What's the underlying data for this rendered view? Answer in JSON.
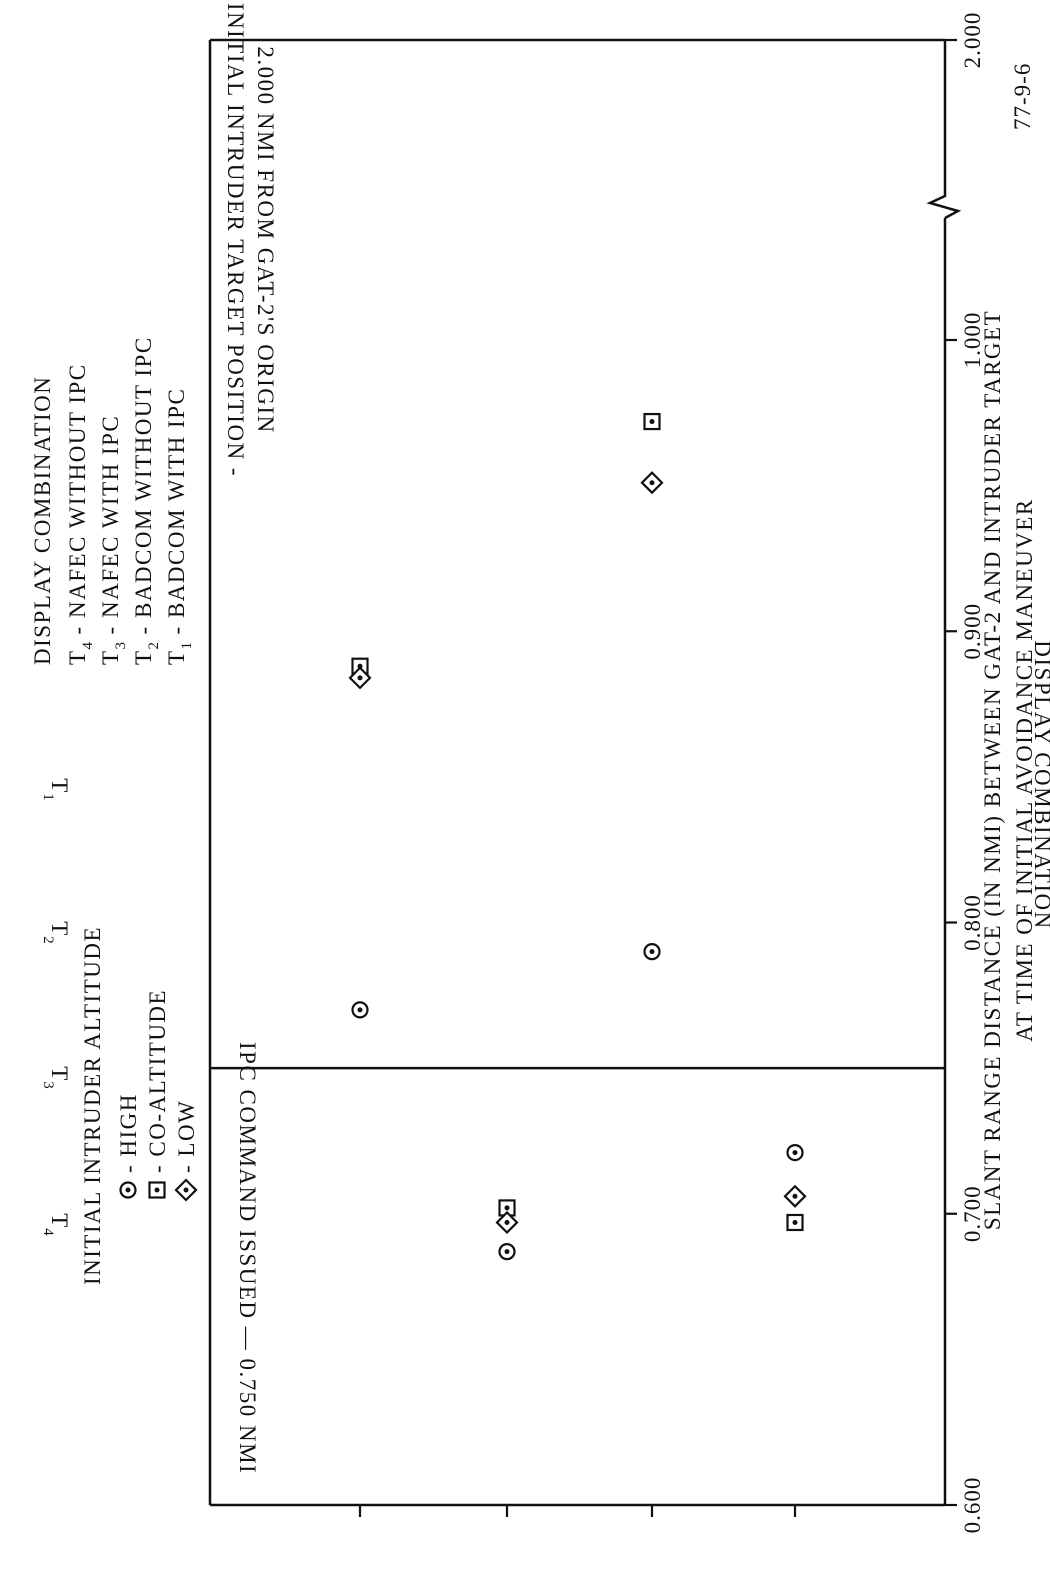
{
  "chart_data": {
    "type": "scatter",
    "title": "",
    "xlabel": "SLANT RANGE DISTANCE (IN NMI) BETWEEN GAT-2 AND INTRUDER TARGET",
    "xlabel_line2": "AT TIME OF INITIAL AVOIDANCE MANEUVER",
    "ylabel": "DISPLAY COMBINATION",
    "x_ticks": [
      0.6,
      0.7,
      0.8,
      0.9,
      1.0,
      2.0
    ],
    "x_tick_labels": [
      "0.600",
      "0.700",
      "0.800",
      "0.900",
      "1.000",
      "2.000"
    ],
    "x_axis_break": "between 1.000 and 2.000",
    "categories": [
      "T4",
      "T3",
      "T2",
      "T1"
    ],
    "category_labels": [
      {
        "main": "T",
        "sub": "4"
      },
      {
        "main": "T",
        "sub": "3"
      },
      {
        "main": "T",
        "sub": "2"
      },
      {
        "main": "T",
        "sub": "1"
      }
    ],
    "series": [
      {
        "name": "HIGH",
        "marker": "circle-dot",
        "points": [
          {
            "cat": "T4",
            "x": 0.77
          },
          {
            "cat": "T3",
            "x": 0.687
          },
          {
            "cat": "T2",
            "x": 0.79
          },
          {
            "cat": "T1",
            "x": 0.721
          }
        ]
      },
      {
        "name": "CO-ALTITUDE",
        "marker": "square-dot",
        "points": [
          {
            "cat": "T4",
            "x": 0.888
          },
          {
            "cat": "T3",
            "x": 0.702
          },
          {
            "cat": "T2",
            "x": 0.972
          },
          {
            "cat": "T1",
            "x": 0.697
          }
        ]
      },
      {
        "name": "LOW",
        "marker": "diamond-dot",
        "points": [
          {
            "cat": "T4",
            "x": 0.884
          },
          {
            "cat": "T3",
            "x": 0.697
          },
          {
            "cat": "T2",
            "x": 0.951
          },
          {
            "cat": "T1",
            "x": 0.706
          }
        ]
      }
    ],
    "reference_lines": [
      {
        "x": 0.75,
        "label": "IPC COMMAND ISSUED — 0.750 NMI"
      },
      {
        "x": 2.0,
        "label_line1": "INITIAL INTRUDER TARGET POSITION -",
        "label_line2": "2.000 NMI FROM GAT-2'S ORIGIN"
      }
    ],
    "legend_altitude": {
      "title": "INITIAL INTRUDER ALTITUDE",
      "items": [
        "- HIGH",
        "- CO-ALTITUDE",
        "- LOW"
      ]
    },
    "legend_display": {
      "title": "DISPLAY COMBINATION",
      "items": [
        {
          "main": "T",
          "sub": "4",
          "text": "- NAFEC WITHOUT IPC"
        },
        {
          "main": "T",
          "sub": "3",
          "text": "- NAFEC WITH IPC"
        },
        {
          "main": "T",
          "sub": "2",
          "text": "- BADCOM WITHOUT IPC"
        },
        {
          "main": "T",
          "sub": "1",
          "text": "- BADCOM WITH IPC"
        }
      ]
    },
    "figure_id": "77-9-6"
  }
}
